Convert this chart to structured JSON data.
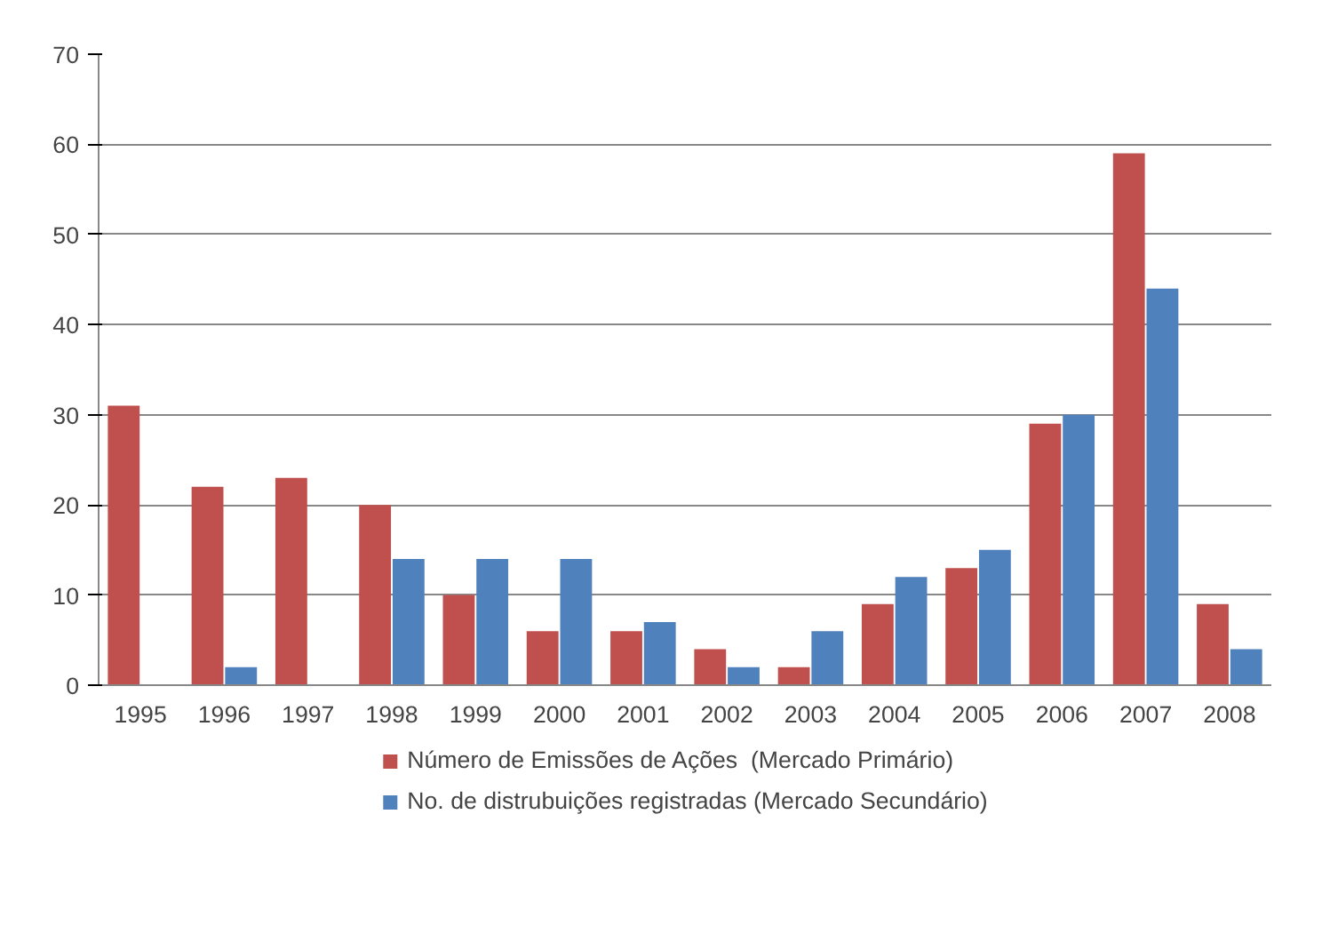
{
  "chart_data": {
    "type": "bar",
    "categories": [
      "1995",
      "1996",
      "1997",
      "1998",
      "1999",
      "2000",
      "2001",
      "2002",
      "2003",
      "2004",
      "2005",
      "2006",
      "2007",
      "2008"
    ],
    "series": [
      {
        "name": "Número de Emissões de Ações  (Mercado Primário)",
        "color": "#c0504d",
        "values": [
          31,
          22,
          23,
          20,
          10,
          6,
          6,
          4,
          2,
          9,
          13,
          29,
          59,
          9
        ]
      },
      {
        "name": "No. de distrubuições registradas (Mercado Secundário)",
        "color": "#4f81bd",
        "values": [
          null,
          2,
          null,
          14,
          14,
          14,
          7,
          2,
          6,
          12,
          15,
          30,
          44,
          4
        ]
      }
    ],
    "ylim": [
      0,
      70
    ],
    "yticks": [
      0,
      10,
      20,
      30,
      40,
      50,
      60,
      70
    ],
    "grid": "y",
    "legend": "bottom"
  }
}
